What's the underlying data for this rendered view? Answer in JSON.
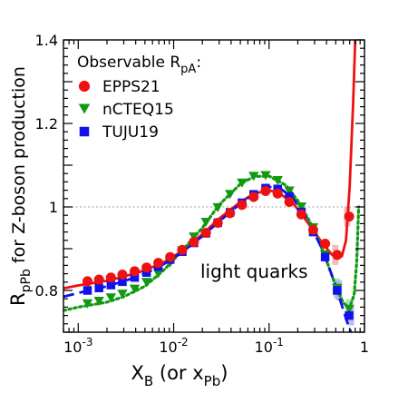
{
  "chart_data": {
    "type": "line",
    "title": "",
    "xlabel": {
      "main": "X",
      "sub1": "B",
      "mid": " (or x",
      "sub2": "Pb",
      "end": ")"
    },
    "ylabel": {
      "main": "R",
      "sub": "pPb",
      "rest": " for Z-boson production"
    },
    "xscale": "log",
    "xlim": [
      0.0007,
      1.0
    ],
    "ylim": [
      0.7,
      1.4
    ],
    "xticks": [
      {
        "value": 0.001,
        "base": "10",
        "exp": "-3"
      },
      {
        "value": 0.01,
        "base": "10",
        "exp": "-2"
      },
      {
        "value": 0.1,
        "base": "10",
        "exp": "-1"
      },
      {
        "value": 1,
        "label": "1"
      }
    ],
    "yticks": [
      {
        "value": 0.8,
        "label": "0.8"
      },
      {
        "value": 1.0,
        "label": "1"
      },
      {
        "value": 1.2,
        "label": "1.2"
      },
      {
        "value": 1.4,
        "label": "1.4"
      }
    ],
    "reference_line": {
      "y": 1.0,
      "style": "dotted",
      "color": "#b0b0b0"
    },
    "legend": {
      "placement": "top-left",
      "header": {
        "main": "Observable R",
        "sub": "pA",
        "end": ":"
      }
    },
    "annotation": "light quarks",
    "series": [
      {
        "name": "EPPS21",
        "color": "#ee1111",
        "marker": "circle",
        "line_style": "solid",
        "band_color": "#f3a5a5",
        "points": [
          [
            0.00125,
            0.822
          ],
          [
            0.00165,
            0.826
          ],
          [
            0.0022,
            0.831
          ],
          [
            0.0029,
            0.838
          ],
          [
            0.0039,
            0.846
          ],
          [
            0.0052,
            0.855
          ],
          [
            0.0069,
            0.866
          ],
          [
            0.0092,
            0.88
          ],
          [
            0.0123,
            0.897
          ],
          [
            0.0163,
            0.916
          ],
          [
            0.0218,
            0.938
          ],
          [
            0.029,
            0.962
          ],
          [
            0.039,
            0.985
          ],
          [
            0.052,
            1.005
          ],
          [
            0.069,
            1.024
          ],
          [
            0.092,
            1.038
          ],
          [
            0.123,
            1.032
          ],
          [
            0.163,
            1.012
          ],
          [
            0.218,
            0.982
          ],
          [
            0.29,
            0.945
          ],
          [
            0.387,
            0.912
          ],
          [
            0.517,
            0.885
          ],
          [
            0.69,
            0.977
          ]
        ],
        "curve": [
          [
            0.0007,
            0.805
          ],
          [
            0.001,
            0.812
          ],
          [
            0.002,
            0.823
          ],
          [
            0.003,
            0.833
          ],
          [
            0.005,
            0.848
          ],
          [
            0.008,
            0.868
          ],
          [
            0.012,
            0.893
          ],
          [
            0.02,
            0.935
          ],
          [
            0.03,
            0.972
          ],
          [
            0.05,
            1.012
          ],
          [
            0.07,
            1.032
          ],
          [
            0.1,
            1.04
          ],
          [
            0.13,
            1.032
          ],
          [
            0.18,
            1.008
          ],
          [
            0.25,
            0.965
          ],
          [
            0.35,
            0.918
          ],
          [
            0.45,
            0.887
          ],
          [
            0.52,
            0.876
          ],
          [
            0.58,
            0.882
          ],
          [
            0.64,
            0.92
          ],
          [
            0.7,
            1.05
          ],
          [
            0.76,
            1.25
          ],
          [
            0.8,
            1.4
          ]
        ]
      },
      {
        "name": "nCTEQ15",
        "color": "#119911",
        "marker": "triangle-down",
        "line_style": "dotted",
        "band_color": "#9bd39b",
        "points": [
          [
            0.00125,
            0.768
          ],
          [
            0.00165,
            0.774
          ],
          [
            0.0022,
            0.782
          ],
          [
            0.0029,
            0.791
          ],
          [
            0.0039,
            0.803
          ],
          [
            0.0052,
            0.819
          ],
          [
            0.0069,
            0.84
          ],
          [
            0.0092,
            0.866
          ],
          [
            0.0123,
            0.895
          ],
          [
            0.0163,
            0.928
          ],
          [
            0.0218,
            0.963
          ],
          [
            0.029,
            0.998
          ],
          [
            0.039,
            1.03
          ],
          [
            0.052,
            1.057
          ],
          [
            0.069,
            1.073
          ],
          [
            0.092,
            1.075
          ],
          [
            0.123,
            1.063
          ],
          [
            0.163,
            1.038
          ],
          [
            0.218,
            1.0
          ],
          [
            0.29,
            0.95
          ],
          [
            0.387,
            0.885
          ],
          [
            0.517,
            0.805
          ],
          [
            0.69,
            0.755
          ]
        ],
        "curve": [
          [
            0.0007,
            0.752
          ],
          [
            0.001,
            0.76
          ],
          [
            0.002,
            0.772
          ],
          [
            0.003,
            0.785
          ],
          [
            0.005,
            0.81
          ],
          [
            0.008,
            0.85
          ],
          [
            0.012,
            0.893
          ],
          [
            0.02,
            0.95
          ],
          [
            0.03,
            1.005
          ],
          [
            0.05,
            1.055
          ],
          [
            0.07,
            1.073
          ],
          [
            0.1,
            1.074
          ],
          [
            0.15,
            1.052
          ],
          [
            0.2,
            1.015
          ],
          [
            0.3,
            0.945
          ],
          [
            0.4,
            0.872
          ],
          [
            0.5,
            0.81
          ],
          [
            0.6,
            0.77
          ],
          [
            0.7,
            0.758
          ],
          [
            0.78,
            0.79
          ],
          [
            0.83,
            0.87
          ],
          [
            0.87,
            1.0
          ]
        ]
      },
      {
        "name": "TUJU19",
        "color": "#1111ee",
        "marker": "square",
        "line_style": "dashed",
        "band_color": "#a8a8f0",
        "points": [
          [
            0.00125,
            0.8
          ],
          [
            0.00165,
            0.806
          ],
          [
            0.0022,
            0.813
          ],
          [
            0.0029,
            0.821
          ],
          [
            0.0039,
            0.831
          ],
          [
            0.0052,
            0.843
          ],
          [
            0.0069,
            0.857
          ],
          [
            0.0092,
            0.874
          ],
          [
            0.0123,
            0.893
          ],
          [
            0.0163,
            0.914
          ],
          [
            0.0218,
            0.937
          ],
          [
            0.029,
            0.962
          ],
          [
            0.039,
            0.987
          ],
          [
            0.052,
            1.01
          ],
          [
            0.069,
            1.03
          ],
          [
            0.092,
            1.045
          ],
          [
            0.123,
            1.043
          ],
          [
            0.163,
            1.025
          ],
          [
            0.218,
            0.988
          ],
          [
            0.29,
            0.94
          ],
          [
            0.387,
            0.88
          ],
          [
            0.517,
            0.8
          ],
          [
            0.69,
            0.74
          ]
        ],
        "curve": [
          [
            0.0007,
            0.785
          ],
          [
            0.001,
            0.794
          ],
          [
            0.002,
            0.81
          ],
          [
            0.003,
            0.822
          ],
          [
            0.005,
            0.84
          ],
          [
            0.008,
            0.864
          ],
          [
            0.012,
            0.89
          ],
          [
            0.02,
            0.93
          ],
          [
            0.03,
            0.965
          ],
          [
            0.05,
            1.008
          ],
          [
            0.07,
            1.032
          ],
          [
            0.1,
            1.048
          ],
          [
            0.13,
            1.045
          ],
          [
            0.18,
            1.02
          ],
          [
            0.25,
            0.972
          ],
          [
            0.35,
            0.905
          ],
          [
            0.45,
            0.84
          ],
          [
            0.55,
            0.78
          ],
          [
            0.65,
            0.728
          ],
          [
            0.72,
            0.7
          ]
        ]
      }
    ]
  }
}
